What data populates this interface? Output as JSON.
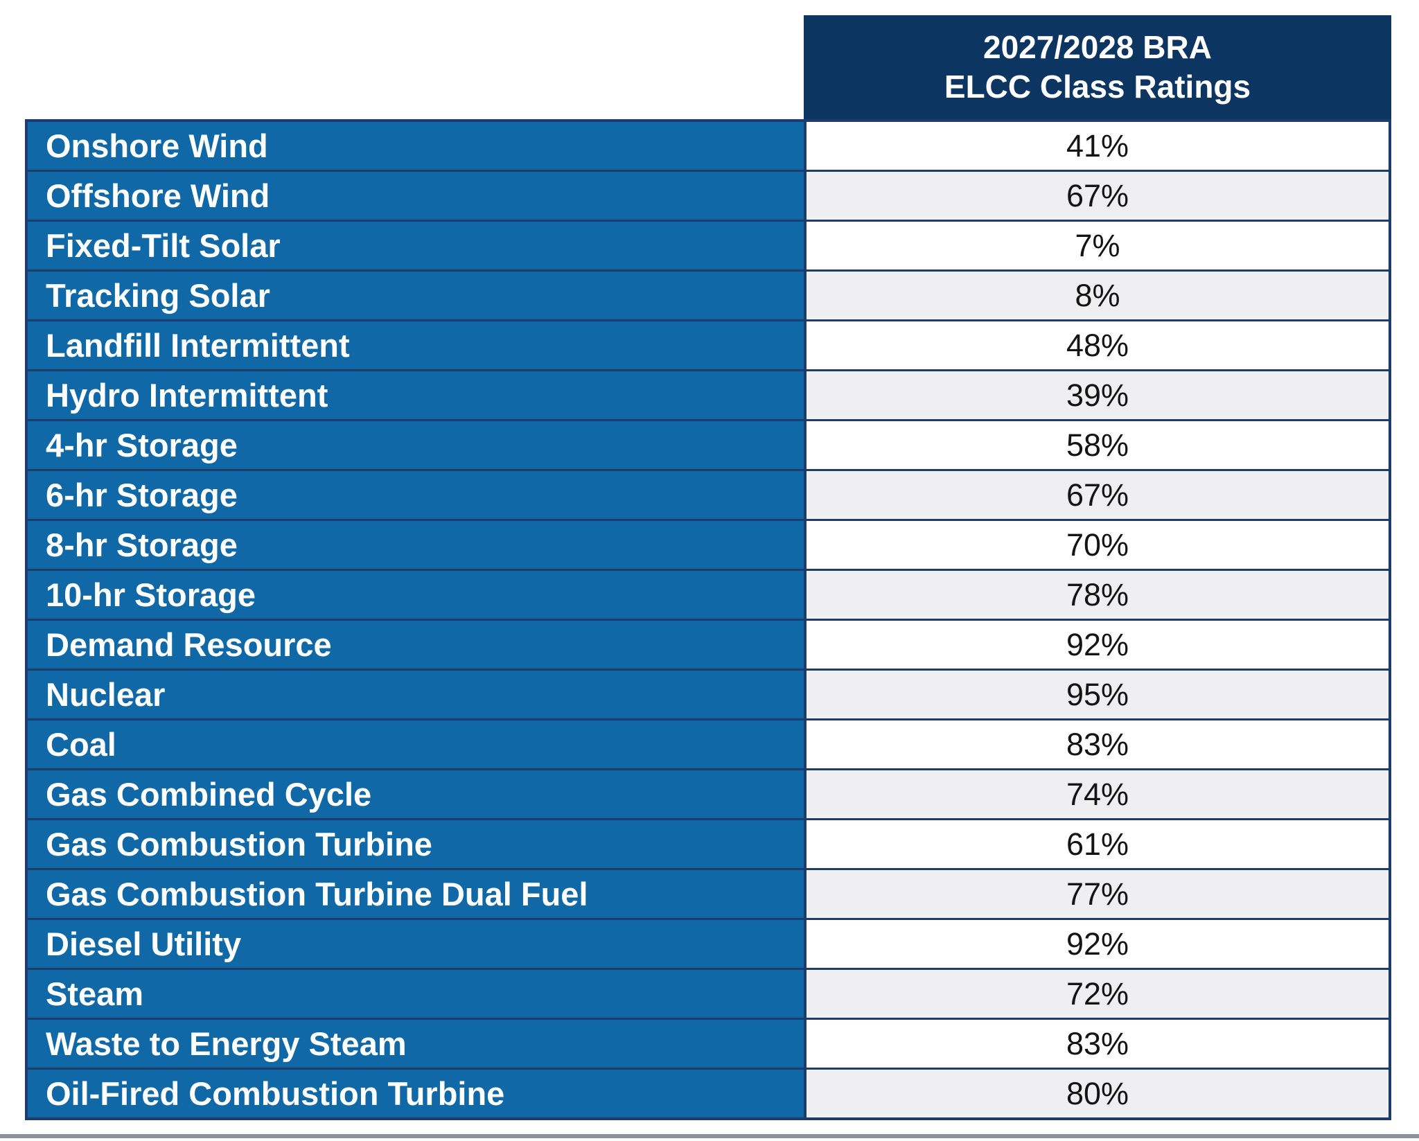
{
  "page": {
    "background": "#ffffff"
  },
  "header": {
    "line1": "2027/2028 BRA",
    "line2": "ELCC Class Ratings"
  },
  "colors": {
    "header_navy": "#0d3561",
    "row_blue": "#1068a7",
    "alt_row_gray": "#efeff1",
    "separator_navy": "#1d3c6b",
    "label_text": "#ffffff",
    "value_text": "#141414",
    "bottom_bar_gray": "#8b9197"
  },
  "chart_data": {
    "type": "table",
    "title": "2027/2028 BRA ELCC Class Ratings",
    "columns": [
      "",
      "2027/2028 BRA ELCC Class Ratings"
    ],
    "rows": [
      [
        "Onshore Wind",
        "41%"
      ],
      [
        "Offshore Wind",
        "67%"
      ],
      [
        "Fixed-Tilt Solar",
        "7%"
      ],
      [
        "Tracking Solar",
        "8%"
      ],
      [
        "Landfill Intermittent",
        "48%"
      ],
      [
        "Hydro Intermittent",
        "39%"
      ],
      [
        "4-hr Storage",
        "58%"
      ],
      [
        "6-hr Storage",
        "67%"
      ],
      [
        "8-hr Storage",
        "70%"
      ],
      [
        "10-hr Storage",
        "78%"
      ],
      [
        "Demand Resource",
        "92%"
      ],
      [
        "Nuclear",
        "95%"
      ],
      [
        "Coal",
        "83%"
      ],
      [
        "Gas Combined Cycle",
        "74%"
      ],
      [
        "Gas Combustion Turbine",
        "61%"
      ],
      [
        "Gas Combustion Turbine Dual Fuel",
        "77%"
      ],
      [
        "Diesel Utility",
        "92%"
      ],
      [
        "Steam",
        "72%"
      ],
      [
        "Waste to Energy Steam",
        "83%"
      ],
      [
        "Oil-Fired Combustion Turbine",
        "80%"
      ]
    ]
  }
}
